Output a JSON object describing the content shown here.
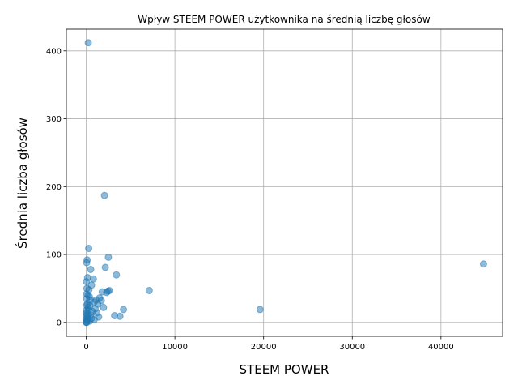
{
  "chart_data": {
    "type": "scatter",
    "title": "Wpływ STEEM POWER użytkownika na średnią liczbę głosów",
    "xlabel": "STEEM POWER",
    "ylabel": "Średnia liczba głosów",
    "xlim": [
      -2240,
      46950
    ],
    "ylim": [
      -20.5,
      432
    ],
    "xticks": [
      0,
      10000,
      20000,
      30000,
      40000
    ],
    "xtick_labels": [
      "0",
      "10000",
      "20000",
      "30000",
      "40000"
    ],
    "yticks": [
      0,
      100,
      200,
      300,
      400
    ],
    "ytick_labels": [
      "0",
      "100",
      "200",
      "300",
      "400"
    ],
    "grid": true,
    "marker_color": "#1f77b4",
    "marker_alpha": 0.5,
    "series": [
      {
        "points": [
          [
            230,
            412
          ],
          [
            2060,
            187
          ],
          [
            280,
            109
          ],
          [
            2500,
            96
          ],
          [
            100,
            92
          ],
          [
            50,
            88
          ],
          [
            44800,
            86
          ],
          [
            2150,
            81
          ],
          [
            500,
            78
          ],
          [
            3400,
            70
          ],
          [
            800,
            64
          ],
          [
            150,
            66
          ],
          [
            600,
            55
          ],
          [
            20,
            60
          ],
          [
            70,
            50
          ],
          [
            300,
            48
          ],
          [
            2600,
            47
          ],
          [
            2450,
            46
          ],
          [
            2300,
            44
          ],
          [
            7100,
            47
          ],
          [
            1800,
            45
          ],
          [
            40,
            42
          ],
          [
            200,
            40
          ],
          [
            1500,
            36
          ],
          [
            1100,
            33
          ],
          [
            1700,
            32
          ],
          [
            900,
            30
          ],
          [
            30,
            35
          ],
          [
            120,
            28
          ],
          [
            1300,
            27
          ],
          [
            400,
            25
          ],
          [
            60,
            25
          ],
          [
            1950,
            22
          ],
          [
            1000,
            20
          ],
          [
            4200,
            19
          ],
          [
            19600,
            19
          ],
          [
            250,
            18
          ],
          [
            700,
            16
          ],
          [
            1200,
            14
          ],
          [
            20,
            14
          ],
          [
            80,
            12
          ],
          [
            500,
            11
          ],
          [
            3200,
            10
          ],
          [
            3800,
            9
          ],
          [
            1400,
            8
          ],
          [
            150,
            8
          ],
          [
            600,
            6
          ],
          [
            900,
            4
          ],
          [
            30,
            5
          ],
          [
            90,
            3
          ],
          [
            400,
            2
          ],
          [
            10,
            1
          ],
          [
            50,
            0
          ],
          [
            5,
            0
          ],
          [
            200,
            22
          ],
          [
            350,
            38
          ],
          [
            450,
            33
          ],
          [
            15,
            18
          ],
          [
            35,
            9
          ],
          [
            180,
            5
          ]
        ]
      }
    ]
  }
}
